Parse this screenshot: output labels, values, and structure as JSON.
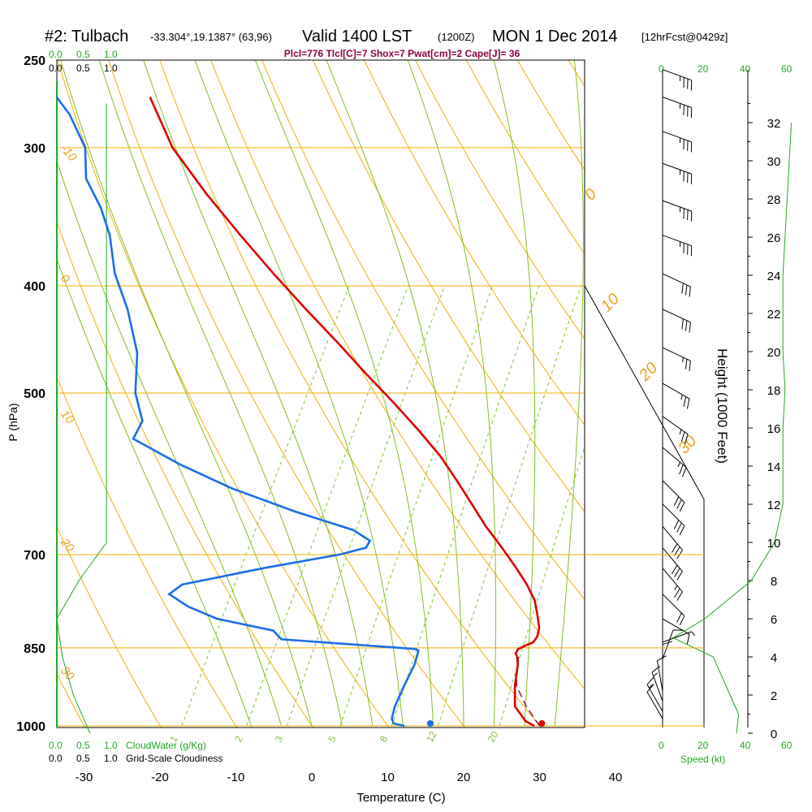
{
  "header": {
    "title": "#2: Tulbach",
    "coords": "-33.304°,19.1387° (63,96)",
    "valid": "Valid 1400 LST",
    "utc": "(1200Z)",
    "date": "MON 1 Dec 2014",
    "fcst": "[12hrFcst@0429z]",
    "indices": "Plcl=776 Tlcl[C]=7 Shox=7 Pwat[cm]=2 Cape[J]= 36"
  },
  "colors": {
    "isobar": "#f0b000",
    "dry_adiabat": "#f0b000",
    "moist_adiabat": "#80c020",
    "mixing_ratio": "#80c020",
    "temperature": "#e00000",
    "dewpoint": "#1a6ee8",
    "parcel": "#800040",
    "cloud": "#22a822"
  },
  "top_scales": {
    "cloudwater_ticks": [
      "0.0",
      "0.5",
      "1.0"
    ],
    "cloudiness_ticks": [
      "0.0",
      "0.5",
      "1.0"
    ],
    "speed_ticks": [
      "0",
      "20",
      "40",
      "60"
    ]
  },
  "bottom_scales": {
    "cloudwater_ticks": [
      "0.0",
      "0.5",
      "1.0"
    ],
    "cloudwater_label": "CloudWater (g/Kg)",
    "cloudiness_ticks": [
      "0.0",
      "0.5",
      "1.0"
    ],
    "cloudiness_label": "Grid-Scale Cloudiness",
    "speed_ticks": [
      "0",
      "20",
      "40",
      "60"
    ],
    "speed_label": "Speed (kt)"
  },
  "chart_data": {
    "type": "skew-t",
    "xlabel": "Temperature (C)",
    "ylabel": "P (hPa)",
    "y2label": "Height (1000 Feet)",
    "x_ticks": [
      -30,
      -20,
      -10,
      0,
      10,
      20,
      30,
      40
    ],
    "p_ticks": [
      250,
      300,
      400,
      500,
      700,
      850,
      1000
    ],
    "height_ticks": [
      0,
      2,
      4,
      6,
      8,
      10,
      12,
      14,
      16,
      18,
      20,
      22,
      24,
      26,
      28,
      30,
      32
    ],
    "dry_adiabat_labels": [
      "-10",
      "0",
      "10",
      "20",
      "30",
      "0",
      "10",
      "20",
      "30"
    ],
    "mixing_ratio_labels": [
      "1",
      "2",
      "3",
      "5",
      "8",
      "12",
      "20"
    ],
    "temperature": {
      "p": [
        1000,
        990,
        960,
        920,
        880,
        865,
        860,
        852,
        845,
        840,
        830,
        815,
        795,
        770,
        745,
        720,
        690,
        660,
        630,
        600,
        570,
        540,
        510,
        480,
        450,
        420,
        390,
        360,
        330,
        300,
        270
      ],
      "t": [
        29.3,
        27.8,
        25.3,
        23.8,
        22.6,
        21.9,
        21.5,
        21.5,
        22.3,
        23.0,
        23.1,
        22.7,
        21.6,
        20.1,
        17.9,
        15.3,
        11.9,
        8.2,
        4.7,
        1.0,
        -3.0,
        -7.8,
        -13.1,
        -18.9,
        -24.9,
        -31.5,
        -38.4,
        -45.6,
        -53.2,
        -61.0,
        -67.7
      ]
    },
    "dewpoint": {
      "p": [
        1000,
        995,
        985,
        960,
        920,
        880,
        855,
        852,
        835,
        820,
        800,
        780,
        760,
        745,
        720,
        700,
        690,
        680,
        665,
        640,
        610,
        580,
        550,
        530,
        500,
        460,
        420,
        390,
        360,
        340,
        320,
        300,
        280,
        270
      ],
      "td": [
        12.2,
        10.6,
        10.0,
        9.5,
        9.2,
        9.0,
        8.5,
        8.0,
        -10.4,
        -12.1,
        -20.4,
        -25.1,
        -28.5,
        -27.5,
        -18.0,
        -9.0,
        -6.0,
        -6.0,
        -9.0,
        -18.0,
        -28.0,
        -36.7,
        -44.7,
        -44.8,
        -47.8,
        -50.5,
        -55.0,
        -59.3,
        -62.8,
        -66.0,
        -70.1,
        -72.5,
        -77.0,
        -80.0
      ]
    },
    "parcel": {
      "p": [
        1000,
        960,
        920,
        880,
        862
      ],
      "t": [
        30.0,
        26.8,
        24.0,
        22.6,
        22.0
      ]
    },
    "surface_markers": {
      "temperature_c": 30.3,
      "dewpoint_c": 15.6
    },
    "cloud_water": {
      "h": [
        0,
        2,
        4,
        6,
        8,
        10,
        14,
        20,
        24,
        30,
        33
      ],
      "v": [
        0.6,
        0.3,
        0.1,
        0.0,
        0.4,
        0.9,
        0.9,
        0.9,
        0.9,
        0.9,
        0.9
      ]
    },
    "wind_speed": {
      "h": [
        0,
        1,
        2,
        4,
        5,
        6,
        8,
        10,
        12,
        14,
        16,
        18,
        20,
        22,
        24,
        26,
        28,
        30,
        32
      ],
      "v": [
        35,
        36,
        32,
        24,
        5,
        20,
        42,
        53,
        57,
        57,
        57,
        58,
        57,
        57,
        57,
        58,
        59,
        60,
        61
      ]
    },
    "wind_barbs": [
      {
        "p": 985,
        "dir": 150,
        "spd": 10
      },
      {
        "p": 970,
        "dir": 150,
        "spd": 15
      },
      {
        "p": 950,
        "dir": 160,
        "spd": 15
      },
      {
        "p": 930,
        "dir": 170,
        "spd": 10
      },
      {
        "p": 900,
        "dir": 180,
        "spd": 10
      },
      {
        "p": 870,
        "dir": 200,
        "spd": 10
      },
      {
        "p": 840,
        "dir": 250,
        "spd": 5
      },
      {
        "p": 800,
        "dir": 300,
        "spd": 10
      },
      {
        "p": 760,
        "dir": 315,
        "spd": 20
      },
      {
        "p": 720,
        "dir": 320,
        "spd": 25
      },
      {
        "p": 690,
        "dir": 320,
        "spd": 30
      },
      {
        "p": 660,
        "dir": 320,
        "spd": 30
      },
      {
        "p": 630,
        "dir": 315,
        "spd": 30
      },
      {
        "p": 600,
        "dir": 315,
        "spd": 30
      },
      {
        "p": 560,
        "dir": 310,
        "spd": 25
      },
      {
        "p": 525,
        "dir": 305,
        "spd": 25
      },
      {
        "p": 490,
        "dir": 300,
        "spd": 25
      },
      {
        "p": 455,
        "dir": 295,
        "spd": 25
      },
      {
        "p": 420,
        "dir": 295,
        "spd": 30
      },
      {
        "p": 390,
        "dir": 295,
        "spd": 30
      },
      {
        "p": 360,
        "dir": 290,
        "spd": 35
      },
      {
        "p": 335,
        "dir": 290,
        "spd": 35
      },
      {
        "p": 310,
        "dir": 290,
        "spd": 35
      },
      {
        "p": 290,
        "dir": 290,
        "spd": 35
      },
      {
        "p": 270,
        "dir": 290,
        "spd": 35
      },
      {
        "p": 255,
        "dir": 290,
        "spd": 35
      }
    ]
  }
}
